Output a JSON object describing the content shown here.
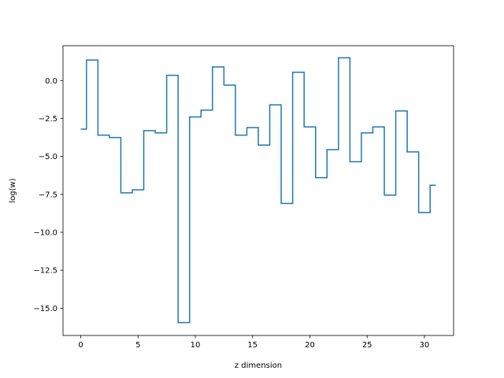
{
  "chart_data": {
    "type": "line",
    "drawstyle": "steps-mid",
    "title": "",
    "xlabel": "z dimension",
    "ylabel": "log(w)",
    "xlim": [
      -1.55,
      32.55
    ],
    "ylim": [
      -16.8,
      2.3
    ],
    "xticks": [
      0,
      5,
      10,
      15,
      20,
      25,
      30
    ],
    "yticks": [
      0.0,
      -2.5,
      -5.0,
      -7.5,
      -10.0,
      -12.5,
      -15.0
    ],
    "xtick_labels": [
      "0",
      "5",
      "10",
      "15",
      "20",
      "25",
      "30"
    ],
    "ytick_labels": [
      "0.0",
      "−2.5",
      "−5.0",
      "−7.5",
      "−10.0",
      "−12.5",
      "−15.0"
    ],
    "grid": false,
    "legend": "none",
    "series": [
      {
        "color": "#1f77b4",
        "x": [
          0,
          1,
          2,
          3,
          4,
          5,
          6,
          7,
          8,
          9,
          10,
          11,
          12,
          13,
          14,
          15,
          16,
          17,
          18,
          19,
          20,
          21,
          22,
          23,
          24,
          25,
          26,
          27,
          28,
          29,
          30,
          31
        ],
        "y": [
          -3.2,
          1.35,
          -3.6,
          -3.75,
          -7.4,
          -7.2,
          -3.3,
          -3.45,
          0.35,
          -15.95,
          -2.4,
          -1.95,
          0.9,
          -0.3,
          -3.6,
          -3.1,
          -4.25,
          -1.6,
          -8.1,
          0.55,
          -3.05,
          -6.4,
          -4.55,
          1.5,
          -5.35,
          -3.45,
          -3.05,
          -7.55,
          -2.0,
          -4.7,
          -8.7,
          -6.9
        ]
      }
    ]
  }
}
